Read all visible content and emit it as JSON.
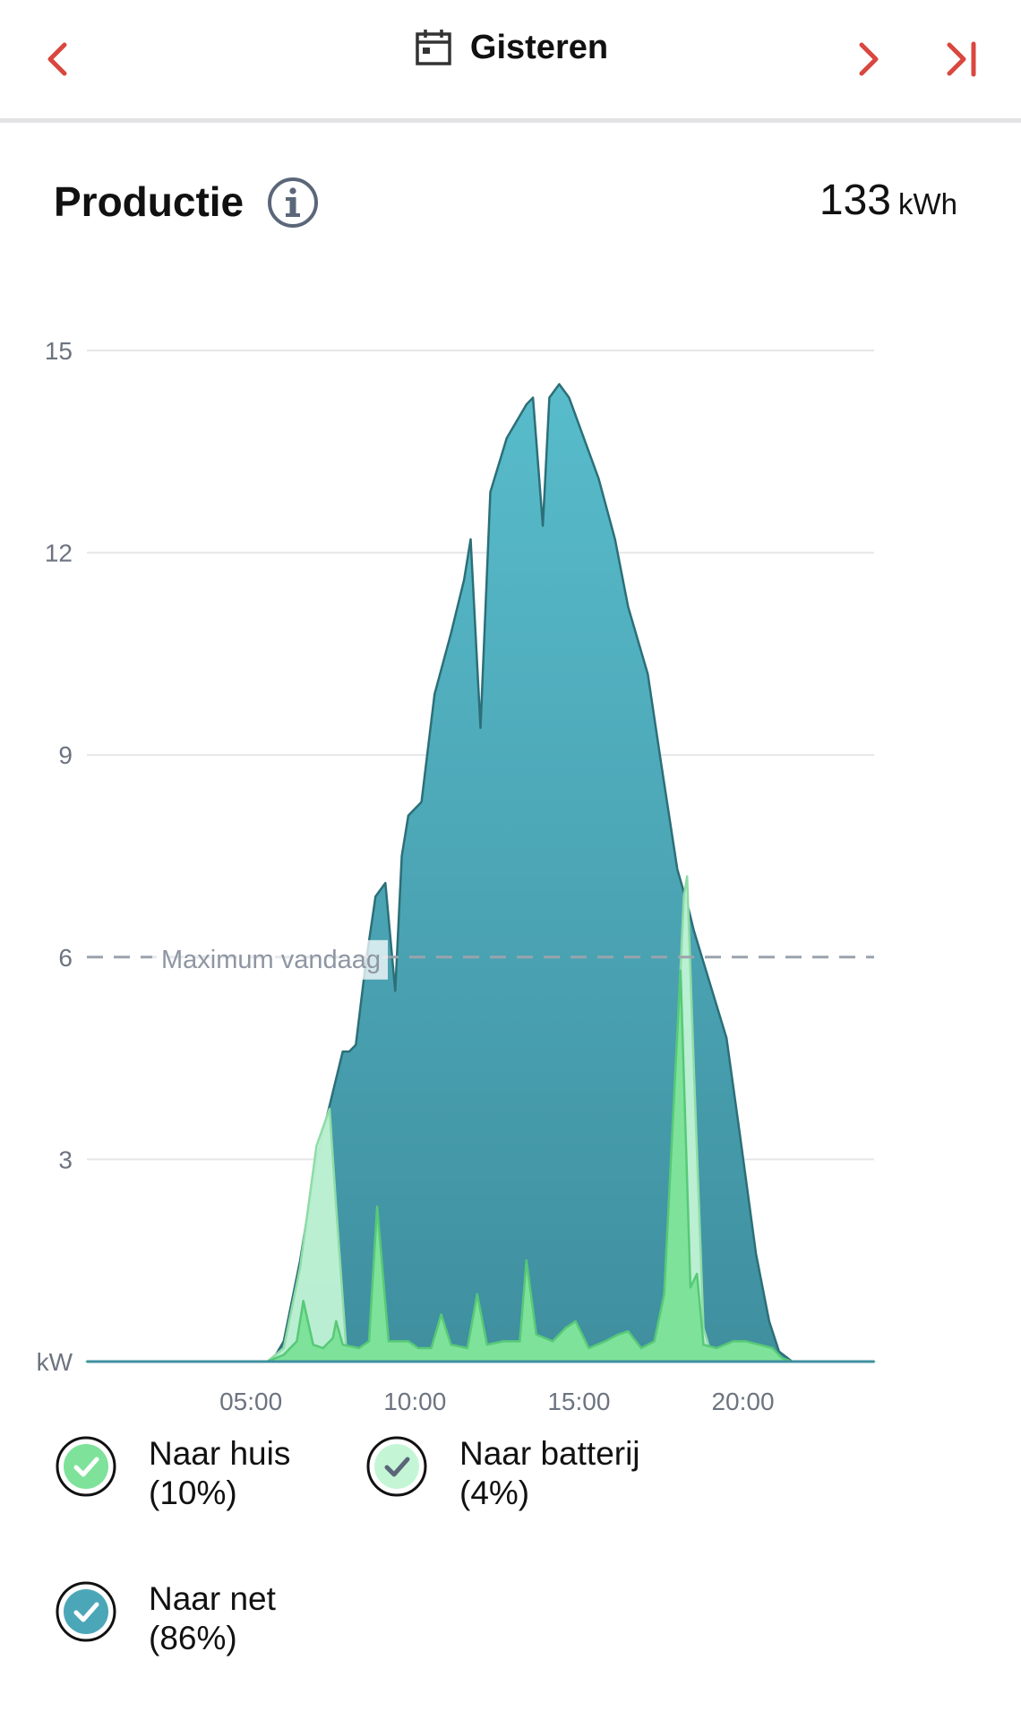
{
  "header": {
    "title": "Gisteren",
    "icons": {
      "prev": "chevron-left-icon",
      "next": "chevron-right-icon",
      "last": "skip-to-end-icon",
      "calendar": "calendar-icon"
    },
    "accent_color": "#d9473f"
  },
  "section": {
    "title": "Productie",
    "total_value": "133",
    "total_unit": "kWh"
  },
  "legend": [
    {
      "label": "Naar huis",
      "pct": "(10%)",
      "color": "#7ee29a"
    },
    {
      "label": "Naar batterij",
      "pct": "(4%)",
      "color": "#c4f6d6"
    },
    {
      "label": "Naar net",
      "pct": "(86%)",
      "color": "#4ba7b8"
    }
  ],
  "chart_data": {
    "type": "area",
    "ylabel": "kW",
    "ylim": [
      0,
      15
    ],
    "yticks": [
      3,
      6,
      9,
      12,
      15
    ],
    "xlim": [
      0,
      24
    ],
    "xticks": [
      5,
      10,
      15,
      20
    ],
    "xtick_labels": [
      "05:00",
      "10:00",
      "15:00",
      "20:00"
    ],
    "reference_line": {
      "label": "Maximum vandaag",
      "value": 6
    },
    "grid": true,
    "series": [
      {
        "name": "Naar net",
        "color": "#4ba7b8",
        "points": [
          [
            0,
            0
          ],
          [
            5.5,
            0
          ],
          [
            5.7,
            0.05
          ],
          [
            6.0,
            0.3
          ],
          [
            6.5,
            1.5
          ],
          [
            7.0,
            3.0
          ],
          [
            7.5,
            4.0
          ],
          [
            7.8,
            4.6
          ],
          [
            8.0,
            4.6
          ],
          [
            8.2,
            4.7
          ],
          [
            8.5,
            5.9
          ],
          [
            8.8,
            6.9
          ],
          [
            9.1,
            7.1
          ],
          [
            9.4,
            5.5
          ],
          [
            9.6,
            7.5
          ],
          [
            9.8,
            8.1
          ],
          [
            10.2,
            8.3
          ],
          [
            10.6,
            9.9
          ],
          [
            11.1,
            10.8
          ],
          [
            11.5,
            11.6
          ],
          [
            11.7,
            12.2
          ],
          [
            12.0,
            9.4
          ],
          [
            12.3,
            12.9
          ],
          [
            12.8,
            13.7
          ],
          [
            13.4,
            14.2
          ],
          [
            13.6,
            14.3
          ],
          [
            13.9,
            12.4
          ],
          [
            14.1,
            14.3
          ],
          [
            14.4,
            14.5
          ],
          [
            14.7,
            14.3
          ],
          [
            15.0,
            13.9
          ],
          [
            15.6,
            13.1
          ],
          [
            16.1,
            12.2
          ],
          [
            16.5,
            11.2
          ],
          [
            17.1,
            10.2
          ],
          [
            17.5,
            8.9
          ],
          [
            18.0,
            7.3
          ],
          [
            18.3,
            6.8
          ],
          [
            18.5,
            6.4
          ],
          [
            19.0,
            5.6
          ],
          [
            19.5,
            4.8
          ],
          [
            19.9,
            3.4
          ],
          [
            20.4,
            1.6
          ],
          [
            20.8,
            0.6
          ],
          [
            21.1,
            0.15
          ],
          [
            21.5,
            0
          ],
          [
            24,
            0
          ]
        ]
      },
      {
        "name": "Naar batterij",
        "color": "#c4f6d6",
        "points": [
          [
            0,
            0
          ],
          [
            5.5,
            0
          ],
          [
            6.0,
            0.2
          ],
          [
            6.5,
            1.4
          ],
          [
            7.0,
            3.2
          ],
          [
            7.4,
            3.75
          ],
          [
            7.6,
            2.3
          ],
          [
            7.9,
            0.25
          ],
          [
            8.2,
            0
          ],
          [
            17.0,
            0
          ],
          [
            17.6,
            0.6
          ],
          [
            18.2,
            6.9
          ],
          [
            18.3,
            7.2
          ],
          [
            18.5,
            4.4
          ],
          [
            18.8,
            0.5
          ],
          [
            19.1,
            0
          ],
          [
            24,
            0
          ]
        ]
      },
      {
        "name": "Naar huis",
        "color": "#7ee29a",
        "points": [
          [
            0,
            0
          ],
          [
            5.5,
            0
          ],
          [
            6.0,
            0.1
          ],
          [
            6.4,
            0.3
          ],
          [
            6.6,
            0.9
          ],
          [
            6.9,
            0.25
          ],
          [
            7.2,
            0.2
          ],
          [
            7.5,
            0.35
          ],
          [
            7.6,
            0.6
          ],
          [
            7.8,
            0.25
          ],
          [
            8.3,
            0.2
          ],
          [
            8.6,
            0.3
          ],
          [
            8.85,
            2.3
          ],
          [
            9.2,
            0.3
          ],
          [
            9.8,
            0.3
          ],
          [
            10.1,
            0.2
          ],
          [
            10.5,
            0.2
          ],
          [
            10.8,
            0.7
          ],
          [
            11.1,
            0.25
          ],
          [
            11.6,
            0.2
          ],
          [
            11.9,
            1.0
          ],
          [
            12.2,
            0.25
          ],
          [
            12.7,
            0.3
          ],
          [
            13.2,
            0.3
          ],
          [
            13.4,
            1.5
          ],
          [
            13.7,
            0.4
          ],
          [
            14.2,
            0.3
          ],
          [
            14.6,
            0.5
          ],
          [
            14.9,
            0.6
          ],
          [
            15.3,
            0.2
          ],
          [
            15.8,
            0.3
          ],
          [
            16.2,
            0.4
          ],
          [
            16.5,
            0.45
          ],
          [
            16.9,
            0.2
          ],
          [
            17.3,
            0.3
          ],
          [
            17.6,
            1.0
          ],
          [
            17.95,
            4.4
          ],
          [
            18.1,
            5.8
          ],
          [
            18.4,
            1.1
          ],
          [
            18.6,
            1.3
          ],
          [
            18.8,
            0.25
          ],
          [
            19.2,
            0.2
          ],
          [
            19.7,
            0.3
          ],
          [
            20.1,
            0.3
          ],
          [
            20.5,
            0.25
          ],
          [
            20.9,
            0.2
          ],
          [
            21.2,
            0.05
          ],
          [
            21.5,
            0
          ],
          [
            24,
            0
          ]
        ]
      }
    ]
  }
}
